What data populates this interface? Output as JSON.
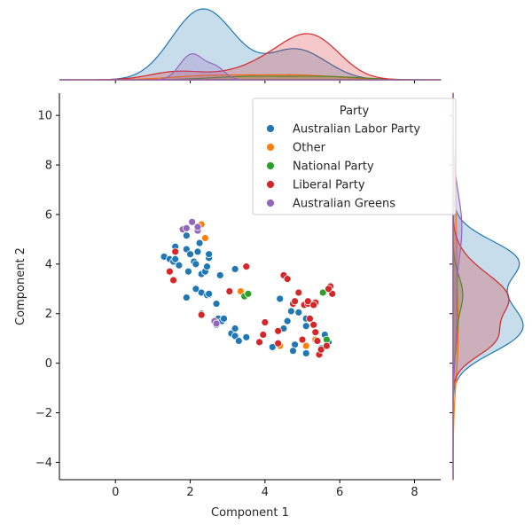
{
  "chart_data": {
    "type": "scatter",
    "xlabel": "Component 1",
    "ylabel": "Component 2",
    "xlim": [
      -1.5,
      8.7
    ],
    "ylim": [
      -4.7,
      10.9
    ],
    "xticks": [
      0,
      2,
      4,
      6,
      8
    ],
    "yticks": [
      -4,
      -2,
      0,
      2,
      4,
      6,
      8,
      10
    ],
    "grid": false,
    "legend": {
      "title": "Party",
      "placement": "top-right"
    },
    "marginals": "kde",
    "series": [
      {
        "name": "Australian Labor Party",
        "color": "#1f77b4",
        "x": [
          1.3,
          1.45,
          1.55,
          1.6,
          1.6,
          1.7,
          1.9,
          1.9,
          1.95,
          2.0,
          2.1,
          2.15,
          2.2,
          2.25,
          2.3,
          2.4,
          2.45,
          2.5,
          2.5,
          2.5,
          1.9,
          2.15,
          2.3,
          2.45,
          2.5,
          2.8,
          2.7,
          2.75,
          2.85,
          2.9,
          2.3,
          3.1,
          3.2,
          3.2,
          3.3,
          3.5,
          3.2,
          4.2,
          4.4,
          4.35,
          4.5,
          4.6,
          4.7,
          4.8,
          4.75,
          5.1,
          5.1,
          5.5,
          5.6,
          5.7,
          5.1,
          4.9,
          2.7
        ],
        "y": [
          4.3,
          4.2,
          4.1,
          4.7,
          4.2,
          3.95,
          5.15,
          4.6,
          3.7,
          4.4,
          4.1,
          4.0,
          4.5,
          4.85,
          3.6,
          3.7,
          3.9,
          4.25,
          4.4,
          2.75,
          2.65,
          3.0,
          2.85,
          2.75,
          2.8,
          3.55,
          2.4,
          1.8,
          1.7,
          1.8,
          2.0,
          1.2,
          1.1,
          1.4,
          0.9,
          1.05,
          3.8,
          0.65,
          2.6,
          1.3,
          1.4,
          1.7,
          2.1,
          0.75,
          0.5,
          1.5,
          0.4,
          0.6,
          1.15,
          0.85,
          1.8,
          2.05,
          1.55
        ]
      },
      {
        "name": "Other",
        "color": "#ff7f0e",
        "x": [
          2.3,
          2.4,
          3.35,
          4.4,
          5.1,
          5.35
        ],
        "y": [
          5.6,
          5.05,
          2.9,
          0.7,
          0.7,
          0.95
        ]
      },
      {
        "name": "National Party",
        "color": "#2ca02c",
        "x": [
          3.45,
          3.55,
          5.55,
          5.65
        ],
        "y": [
          2.7,
          2.8,
          2.85,
          0.95
        ]
      },
      {
        "name": "Liberal Party",
        "color": "#d62728",
        "x": [
          1.45,
          1.55,
          1.6,
          2.3,
          3.05,
          3.5,
          3.85,
          3.95,
          4.0,
          4.35,
          4.5,
          4.6,
          4.75,
          4.8,
          4.9,
          5.0,
          5.05,
          5.15,
          5.2,
          5.3,
          5.35,
          5.35,
          5.4,
          5.45,
          5.5,
          5.65,
          5.75,
          5.8,
          5.7,
          5.15,
          4.35,
          5.3
        ],
        "y": [
          3.7,
          3.35,
          4.5,
          1.95,
          2.9,
          3.9,
          0.85,
          1.15,
          1.65,
          0.8,
          3.55,
          3.4,
          2.4,
          2.5,
          2.85,
          0.95,
          2.35,
          2.4,
          1.8,
          1.55,
          1.25,
          2.45,
          0.9,
          0.35,
          0.55,
          0.7,
          3.1,
          2.8,
          3.0,
          2.5,
          1.3,
          2.35
        ]
      },
      {
        "name": "Australian Greens",
        "color": "#9467bd",
        "x": [
          1.8,
          1.9,
          2.05,
          2.2,
          2.2,
          2.65,
          2.7
        ],
        "y": [
          5.4,
          5.45,
          5.7,
          5.35,
          5.5,
          1.7,
          1.6
        ]
      }
    ]
  }
}
